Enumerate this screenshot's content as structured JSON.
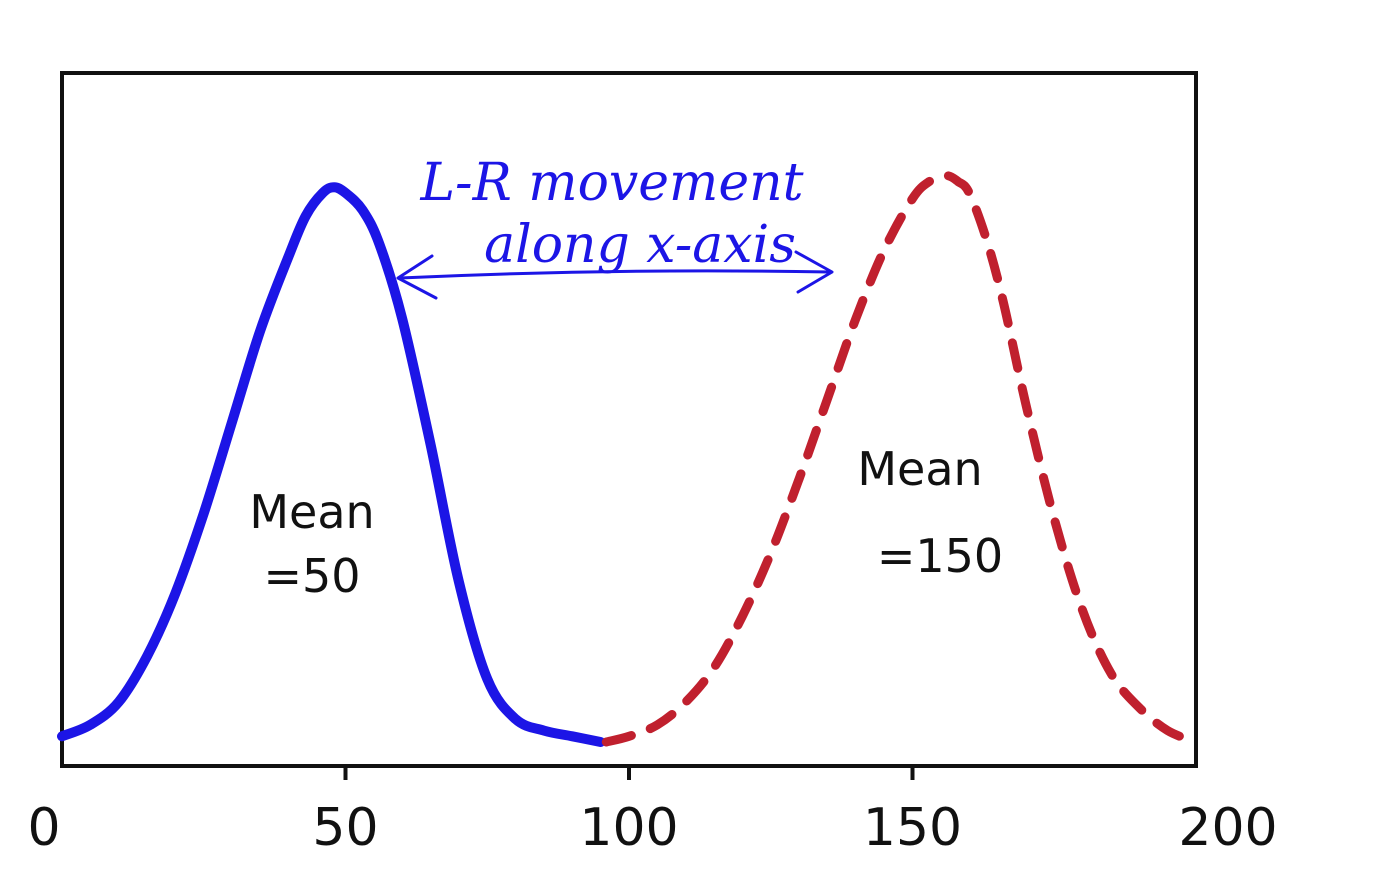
{
  "chart_data": {
    "type": "line",
    "title": "",
    "xlabel": "",
    "ylabel": "",
    "xlim": [
      0,
      200
    ],
    "ylim": [
      0,
      1
    ],
    "x_ticks": [
      0,
      50,
      100,
      150,
      200
    ],
    "grid": false,
    "series": [
      {
        "line_style": "solid",
        "color": "#1c15e6",
        "x": [
          0,
          5,
          10,
          15,
          20,
          25,
          30,
          35,
          40,
          43,
          46,
          48,
          50,
          53,
          56,
          60,
          65,
          70,
          75,
          80,
          85,
          90,
          95
        ],
        "y": [
          0.01,
          0.03,
          0.07,
          0.15,
          0.26,
          0.4,
          0.56,
          0.72,
          0.85,
          0.92,
          0.96,
          0.97,
          0.96,
          0.93,
          0.87,
          0.74,
          0.52,
          0.28,
          0.11,
          0.04,
          0.02,
          0.01,
          0.0
        ]
      },
      {
        "line_style": "dashed",
        "color": "#c0202e",
        "x": [
          96,
          100,
          105,
          110,
          115,
          120,
          125,
          130,
          135,
          140,
          145,
          150,
          153,
          156,
          158,
          160,
          163,
          166,
          170,
          175,
          180,
          185,
          190,
          195,
          200
        ],
        "y": [
          0.0,
          0.01,
          0.03,
          0.07,
          0.13,
          0.22,
          0.33,
          0.46,
          0.6,
          0.74,
          0.86,
          0.95,
          0.98,
          0.99,
          0.98,
          0.96,
          0.88,
          0.77,
          0.59,
          0.39,
          0.23,
          0.12,
          0.06,
          0.02,
          0.0
        ]
      }
    ],
    "annotations": [
      {
        "key": "mean_50",
        "line1": "Mean",
        "line2": "=50",
        "color": "#111111"
      },
      {
        "key": "mean_150",
        "line1": "Mean",
        "line2": "=150",
        "color": "#111111"
      },
      {
        "key": "movement",
        "line1": "L-R movement",
        "line2": "along x-axis",
        "color": "#1c15e6"
      }
    ]
  }
}
